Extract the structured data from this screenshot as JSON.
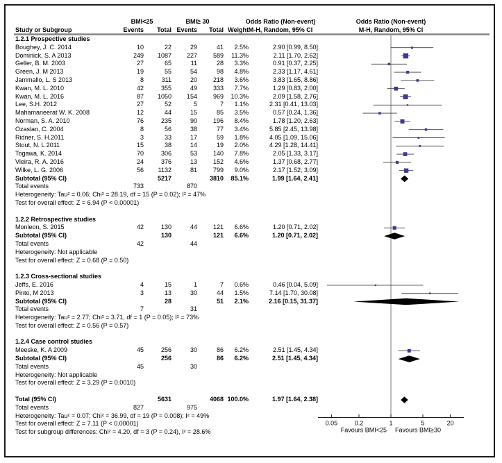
{
  "chart_data": {
    "type": "forest",
    "header": {
      "study": "Study or Subgroup",
      "group1": "BMI<25",
      "group2": "BMI≥ 30",
      "events": "Events",
      "total": "Total",
      "weight": "Weight",
      "or_line1": "Odds Ratio (Non-event)",
      "or_line2": "M-H, Random, 95% CI"
    },
    "axis": {
      "scale": "log",
      "center_value": 1,
      "ticks": [
        0.05,
        0.2,
        1,
        5,
        20
      ],
      "favours_left": "Favours BMI<25",
      "favours_right": "Favours BMI≥30"
    },
    "colors": {
      "marker_square": "#3a3a9c",
      "ci_line": "#3c3c3c",
      "diamond": "#000000",
      "grid_line": "#858585",
      "axis_line": "#1a1a1a"
    },
    "sections": [
      {
        "title": "1.2.1 Prospective studies",
        "studies": [
          {
            "name": "Boughey, J. C. 2014",
            "e1": "10",
            "t1": "22",
            "e2": "29",
            "t2": "41",
            "weight": "2.5%",
            "w": 2.5,
            "or": 2.9,
            "lo": 0.99,
            "hi": 8.5,
            "ci": "2.90 [0.99, 8.50]"
          },
          {
            "name": "Dominick, S. A 2013",
            "e1": "249",
            "t1": "1087",
            "e2": "227",
            "t2": "589",
            "weight": "11.3%",
            "w": 11.3,
            "or": 2.11,
            "lo": 1.7,
            "hi": 2.62,
            "ci": "2.11 [1.70, 2.62]"
          },
          {
            "name": "Geller, B. M. 2003",
            "e1": "27",
            "t1": "65",
            "e2": "11",
            "t2": "28",
            "weight": "3.3%",
            "w": 3.3,
            "or": 0.91,
            "lo": 0.37,
            "hi": 2.25,
            "ci": "0.91 [0.37, 2.25]"
          },
          {
            "name": "Green, J. M 2013",
            "e1": "19",
            "t1": "55",
            "e2": "54",
            "t2": "98",
            "weight": "4.8%",
            "w": 4.8,
            "or": 2.33,
            "lo": 1.17,
            "hi": 4.61,
            "ci": "2.33 [1.17, 4.61]"
          },
          {
            "name": "Jammallo, L. S 2013",
            "e1": "8",
            "t1": "311",
            "e2": "20",
            "t2": "218",
            "weight": "3.6%",
            "w": 3.6,
            "or": 3.83,
            "lo": 1.65,
            "hi": 8.86,
            "ci": "3.83 [1.65, 8.86]"
          },
          {
            "name": "Kwan, M. L. 2010",
            "e1": "42",
            "t1": "355",
            "e2": "49",
            "t2": "333",
            "weight": "7.7%",
            "w": 7.7,
            "or": 1.29,
            "lo": 0.83,
            "hi": 2.0,
            "ci": "1.29 [0.83, 2.00]"
          },
          {
            "name": "Kwan, M. L. 2016",
            "e1": "87",
            "t1": "1050",
            "e2": "154",
            "t2": "969",
            "weight": "10.3%",
            "w": 10.3,
            "or": 2.09,
            "lo": 1.58,
            "hi": 2.76,
            "ci": "2.09 [1.58, 2.76]"
          },
          {
            "name": "Lee, S.H. 2012",
            "e1": "27",
            "t1": "52",
            "e2": "5",
            "t2": "7",
            "weight": "1.1%",
            "w": 1.1,
            "or": 2.31,
            "lo": 0.41,
            "hi": 13.03,
            "ci": "2.31 [0.41, 13.03]"
          },
          {
            "name": "Mahamaneerat W. K. 2008",
            "e1": "12",
            "t1": "44",
            "e2": "15",
            "t2": "85",
            "weight": "3.5%",
            "w": 3.5,
            "or": 0.57,
            "lo": 0.24,
            "hi": 1.36,
            "ci": "0.57 [0.24, 1.36]"
          },
          {
            "name": "Norman, S. A. 2010",
            "e1": "76",
            "t1": "235",
            "e2": "90",
            "t2": "196",
            "weight": "8.4%",
            "w": 8.4,
            "or": 1.78,
            "lo": 1.2,
            "hi": 2.63,
            "ci": "1.78 [1.20, 2.63]"
          },
          {
            "name": "Ozaslan, C. 2004",
            "e1": "8",
            "t1": "56",
            "e2": "38",
            "t2": "77",
            "weight": "3.4%",
            "w": 3.4,
            "or": 5.85,
            "lo": 2.45,
            "hi": 13.98,
            "ci": "5.85 [2.45, 13.98]"
          },
          {
            "name": "Ridner, S. H.2011",
            "e1": "3",
            "t1": "33",
            "e2": "17",
            "t2": "59",
            "weight": "1.8%",
            "w": 1.8,
            "or": 4.05,
            "lo": 1.09,
            "hi": 15.06,
            "ci": "4.05 [1.09, 15.06]"
          },
          {
            "name": "Stout, N. L 2011",
            "e1": "15",
            "t1": "38",
            "e2": "14",
            "t2": "19",
            "weight": "2.0%",
            "w": 2.0,
            "or": 4.29,
            "lo": 1.28,
            "hi": 14.41,
            "ci": "4.29 [1.28, 14.41]"
          },
          {
            "name": "Togawa, K. 2014",
            "e1": "70",
            "t1": "306",
            "e2": "53",
            "t2": "140",
            "weight": "7.8%",
            "w": 7.8,
            "or": 2.05,
            "lo": 1.33,
            "hi": 3.17,
            "ci": "2.05 [1.33, 3.17]"
          },
          {
            "name": "Vieira, R. A. 2016",
            "e1": "24",
            "t1": "376",
            "e2": "13",
            "t2": "152",
            "weight": "4.6%",
            "w": 4.6,
            "or": 1.37,
            "lo": 0.68,
            "hi": 2.77,
            "ci": "1.37 [0.68, 2.77]"
          },
          {
            "name": "Wilke, L. G. 2006",
            "e1": "56",
            "t1": "1132",
            "e2": "81",
            "t2": "799",
            "weight": "9.0%",
            "w": 9.0,
            "or": 2.17,
            "lo": 1.52,
            "hi": 3.09,
            "ci": "2.17 [1.52, 3.09]"
          }
        ],
        "subtotal": {
          "label": "Subtotal (95% CI)",
          "t1": "5217",
          "t2": "3810",
          "weight": "85.1%",
          "or": 1.99,
          "lo": 1.64,
          "hi": 2.41,
          "ci": "1.99 [1.64, 2.41]"
        },
        "total_events": {
          "label": "Total events",
          "e1": "733",
          "e2": "870"
        },
        "notes": [
          "Heterogeneity: Tau² = 0.06; Chi² = 28.19, df = 15 (P = 0.02); I² = 47%",
          "Test for overall effect: Z = 6.94 (P < 0.00001)"
        ]
      },
      {
        "title": "1.2.2 Retrospective studies",
        "studies": [
          {
            "name": "Monleon, S. 2015",
            "e1": "42",
            "t1": "130",
            "e2": "44",
            "t2": "121",
            "weight": "6.6%",
            "w": 6.6,
            "or": 1.2,
            "lo": 0.71,
            "hi": 2.02,
            "ci": "1.20 [0.71, 2.02]"
          }
        ],
        "subtotal": {
          "label": "Subtotal (95% CI)",
          "t1": "130",
          "t2": "121",
          "weight": "6.6%",
          "or": 1.2,
          "lo": 0.71,
          "hi": 2.02,
          "ci": "1.20 [0.71, 2.02]"
        },
        "total_events": {
          "label": "Total events",
          "e1": "42",
          "e2": "44"
        },
        "notes": [
          "Heterogeneity: Not applicable",
          "Test for overall effect: Z = 0.68 (P = 0.50)"
        ]
      },
      {
        "title": "1.2.3 Cross-sectional studies",
        "studies": [
          {
            "name": "Jeffs, E. 2016",
            "e1": "4",
            "t1": "15",
            "e2": "1",
            "t2": "7",
            "weight": "0.6%",
            "w": 0.6,
            "or": 0.46,
            "lo": 0.04,
            "hi": 5.09,
            "ci": "0.46 [0.04, 5.09]"
          },
          {
            "name": "Pinto, M 2013",
            "e1": "3",
            "t1": "13",
            "e2": "30",
            "t2": "44",
            "weight": "1.5%",
            "w": 1.5,
            "or": 7.14,
            "lo": 1.7,
            "hi": 30.08,
            "ci": "7.14 [1.70, 30.08]"
          }
        ],
        "subtotal": {
          "label": "Subtotal (95% CI)",
          "t1": "28",
          "t2": "51",
          "weight": "2.1%",
          "or": 2.16,
          "lo": 0.15,
          "hi": 31.37,
          "ci": "2.16 [0.15, 31.37]"
        },
        "total_events": {
          "label": "Total events",
          "e1": "7",
          "e2": "31"
        },
        "notes": [
          "Heterogeneity: Tau² = 2.77; Chi² = 3.71, df = 1 (P = 0.05); I² = 73%",
          "Test for overall effect: Z = 0.56 (P = 0.57)"
        ]
      },
      {
        "title": "1.2.4 Case control studies",
        "studies": [
          {
            "name": "Meeske, K. A 2009",
            "e1": "45",
            "t1": "256",
            "e2": "30",
            "t2": "86",
            "weight": "6.2%",
            "w": 6.2,
            "or": 2.51,
            "lo": 1.45,
            "hi": 4.34,
            "ci": "2.51 [1.45, 4.34]"
          }
        ],
        "subtotal": {
          "label": "Subtotal (95% CI)",
          "t1": "256",
          "t2": "86",
          "weight": "6.2%",
          "or": 2.51,
          "lo": 1.45,
          "hi": 4.34,
          "ci": "2.51 [1.45, 4.34]"
        },
        "total_events": {
          "label": "Total events",
          "e1": "45",
          "e2": "30"
        },
        "notes": [
          "Heterogeneity: Not applicable",
          "Test for overall effect: Z = 3.29 (P = 0.0010)"
        ]
      }
    ],
    "total": {
      "label": "Total (95% CI)",
      "t1": "5631",
      "t2": "4068",
      "weight": "100.0%",
      "or": 1.97,
      "lo": 1.64,
      "hi": 2.38,
      "ci": "1.97 [1.64, 2.38]",
      "total_events": {
        "label": "Total events",
        "e1": "827",
        "e2": "975"
      },
      "notes": [
        "Heterogeneity: Tau² = 0.07; Chi² = 36.99, df = 19 (P = 0.008); I² = 49%",
        "Test for overall effect: Z = 7.11 (P < 0.00001)",
        "Test for subgroup differences: Chi² = 4.20, df = 3 (P = 0.24), I² = 28.6%"
      ]
    }
  }
}
